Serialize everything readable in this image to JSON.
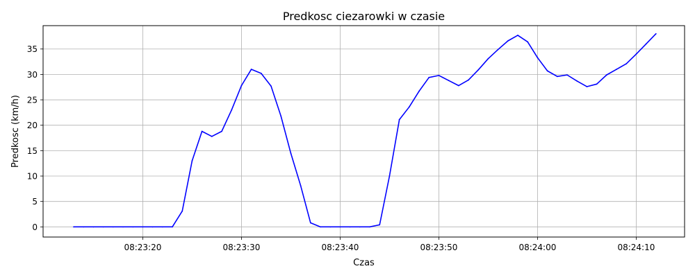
{
  "chart_data": {
    "type": "line",
    "title": "Predkosc ciezarowki w czasie",
    "xlabel": "Czas",
    "ylabel": "Predkosc (km/h)",
    "grid": true,
    "x_tick_labels": [
      "08:23:20",
      "08:23:30",
      "08:23:40",
      "08:23:50",
      "08:24:00",
      "08:24:10"
    ],
    "y_tick_labels": [
      "0",
      "5",
      "10",
      "15",
      "20",
      "25",
      "30",
      "35"
    ],
    "x_ticks": [
      "08:23:20",
      "08:23:30",
      "08:23:40",
      "08:23:50",
      "08:24:00",
      "08:24:10"
    ],
    "y_ticks": [
      0,
      5,
      10,
      15,
      20,
      25,
      30,
      35
    ],
    "xlim": [
      "08:23:09.9",
      "08:24:14.9"
    ],
    "ylim": [
      -2,
      39.6
    ],
    "series": [
      {
        "color": "#0000ff",
        "x": [
          "08:23:13",
          "08:23:14",
          "08:23:15",
          "08:23:16",
          "08:23:17",
          "08:23:18",
          "08:23:19",
          "08:23:20",
          "08:23:21",
          "08:23:22",
          "08:23:23",
          "08:23:24",
          "08:23:25",
          "08:23:26",
          "08:23:27",
          "08:23:28",
          "08:23:29",
          "08:23:30",
          "08:23:31",
          "08:23:32",
          "08:23:33",
          "08:23:34",
          "08:23:35",
          "08:23:36",
          "08:23:37",
          "08:23:38",
          "08:23:39",
          "08:23:40",
          "08:23:41",
          "08:23:42",
          "08:23:43",
          "08:23:44",
          "08:23:45",
          "08:23:46",
          "08:23:47",
          "08:23:48",
          "08:23:49",
          "08:23:50",
          "08:23:51",
          "08:23:52",
          "08:23:53",
          "08:23:54",
          "08:23:55",
          "08:23:56",
          "08:23:57",
          "08:23:58",
          "08:23:59",
          "08:24:00",
          "08:24:01",
          "08:24:02",
          "08:24:03",
          "08:24:04",
          "08:24:05",
          "08:24:06",
          "08:24:07",
          "08:24:08",
          "08:24:09",
          "08:24:10",
          "08:24:11",
          "08:24:12"
        ],
        "y": [
          0,
          0,
          0,
          0,
          0,
          0,
          0,
          0,
          0,
          0,
          0,
          3.1,
          13,
          18.8,
          17.8,
          18.8,
          23,
          27.8,
          31,
          30.2,
          27.7,
          21.8,
          14.5,
          8.1,
          0.8,
          0,
          0,
          0,
          0,
          0,
          0,
          0.4,
          10,
          21.1,
          23.6,
          26.7,
          29.4,
          29.8,
          28.8,
          27.8,
          28.9,
          30.9,
          33.1,
          34.9,
          36.6,
          37.7,
          36.4,
          33.3,
          30.7,
          29.6,
          29.9,
          28.7,
          27.6,
          28.1,
          29.9,
          31,
          32.1,
          34,
          36,
          38
        ]
      }
    ]
  }
}
